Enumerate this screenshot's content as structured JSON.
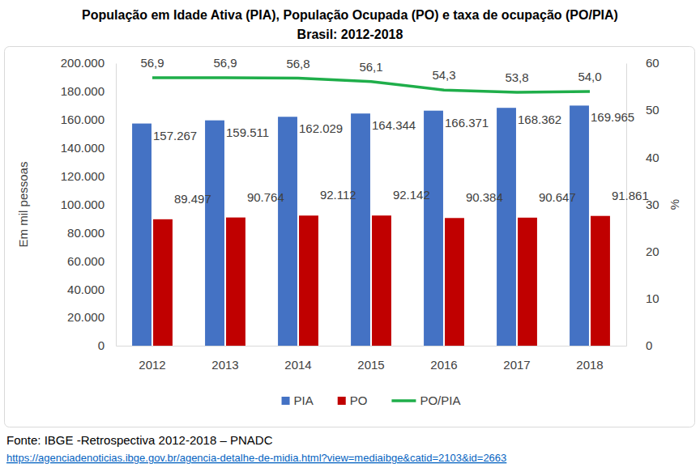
{
  "chart_data": {
    "type": "bar",
    "title": "População em Idade Ativa (PIA), População Ocupada (PO) e taxa de ocupação (PO/PIA)",
    "subtitle": "Brasil: 2012-2018",
    "ylabel": "Em mil pessoas",
    "y2label": "%",
    "annotations": [
      "Fonte: IBGE -Retrospectiva 2012-2018 – PNADC",
      "https://agenciadenoticias.ibge.gov.br/agencia-detalhe-de-midia.html?view=mediaibge&catid=2103&id=2663"
    ],
    "categories": [
      "2012",
      "2013",
      "2014",
      "2015",
      "2016",
      "2017",
      "2018"
    ],
    "series": [
      {
        "name": "PIA",
        "type": "bar",
        "color": "#4472c4",
        "values": [
          157267,
          159511,
          162029,
          164344,
          166371,
          168362,
          169965
        ],
        "value_labels": [
          "157.267",
          "159.511",
          "162.029",
          "164.344",
          "166.371",
          "168.362",
          "169.965"
        ]
      },
      {
        "name": "PO",
        "type": "bar",
        "color": "#c00000",
        "values": [
          89497,
          90764,
          92112,
          92142,
          90384,
          90647,
          91861
        ],
        "value_labels": [
          "89.497",
          "90.764",
          "92.112",
          "92.142",
          "90.384",
          "90.647",
          "91.861"
        ]
      },
      {
        "name": "PO/PIA",
        "type": "line",
        "axis": "y2",
        "color": "#1fae4a",
        "line_style": "solid",
        "values": [
          56.9,
          56.9,
          56.8,
          56.1,
          54.3,
          53.8,
          54.0
        ],
        "value_labels": [
          "56,9",
          "56,9",
          "56,8",
          "56,1",
          "54,3",
          "53,8",
          "54,0"
        ]
      }
    ],
    "ylim": [
      0,
      200000
    ],
    "yticks": [
      0,
      {
        "value": 20000,
        "label": "20.000"
      },
      {
        "value": 40000,
        "label": "40.000"
      },
      {
        "value": 60000,
        "label": "60.000"
      },
      {
        "value": 80000,
        "label": "80.000"
      },
      {
        "value": 100000,
        "label": "100.000"
      },
      {
        "value": 120000,
        "label": "120.000"
      },
      {
        "value": 140000,
        "label": "140.000"
      },
      {
        "value": 160000,
        "label": "160.000"
      },
      {
        "value": 180000,
        "label": "180.000"
      },
      {
        "value": 200000,
        "label": "200.000"
      }
    ],
    "y2lim": [
      0,
      60
    ],
    "y2ticks": [
      0,
      10,
      20,
      30,
      40,
      50,
      60
    ],
    "grid": false,
    "data_labels": true,
    "legend": "bottom"
  }
}
